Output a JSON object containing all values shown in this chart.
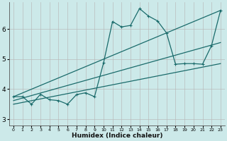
{
  "xlabel": "Humidex (Indice chaleur)",
  "bg_color": "#cce9e9",
  "line_color": "#1a6b6b",
  "grid_color": "#b8b8b8",
  "xlim": [
    -0.5,
    23.5
  ],
  "ylim": [
    2.8,
    6.9
  ],
  "yticks": [
    3,
    4,
    5,
    6
  ],
  "xticks": [
    0,
    1,
    2,
    3,
    4,
    5,
    6,
    7,
    8,
    9,
    10,
    11,
    12,
    13,
    14,
    15,
    16,
    17,
    18,
    19,
    20,
    21,
    22,
    23
  ],
  "curve_x": [
    0,
    1,
    2,
    3,
    4,
    5,
    6,
    7,
    8,
    9,
    10,
    11,
    12,
    13,
    14,
    15,
    16,
    17,
    18,
    19,
    20,
    21,
    22,
    23
  ],
  "curve_y": [
    3.75,
    3.75,
    3.5,
    3.83,
    3.65,
    3.62,
    3.5,
    3.82,
    3.88,
    3.75,
    4.87,
    6.25,
    6.07,
    6.12,
    6.68,
    6.43,
    6.27,
    5.87,
    4.83,
    4.85,
    4.85,
    4.83,
    5.45,
    6.62
  ],
  "line1_x": [
    0,
    23
  ],
  "line1_y": [
    3.75,
    6.62
  ],
  "line2_x": [
    0,
    23
  ],
  "line2_y": [
    3.62,
    5.55
  ],
  "line3_x": [
    0,
    23
  ],
  "line3_y": [
    3.5,
    4.85
  ]
}
